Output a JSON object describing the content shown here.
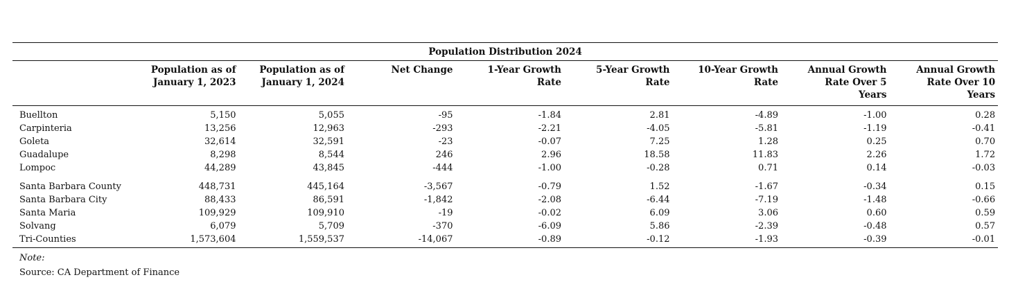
{
  "table": {
    "title": "Population Distribution 2024",
    "columns": [
      [
        "Population as of",
        "January 1, 2023"
      ],
      [
        "Population as of",
        "January 1, 2024"
      ],
      [
        "Net Change"
      ],
      [
        "1-Year Growth",
        "Rate"
      ],
      [
        "5-Year Growth",
        "Rate"
      ],
      [
        "10-Year Growth",
        "Rate"
      ],
      [
        "Annual Growth",
        "Rate Over 5",
        "Years"
      ],
      [
        "Annual Growth",
        "Rate Over 10",
        "Years"
      ]
    ],
    "groups": [
      [
        [
          "Buellton",
          "5,150",
          "5,055",
          "-95",
          "-1.84",
          "2.81",
          "-4.89",
          "-1.00",
          "0.28"
        ],
        [
          "Carpinteria",
          "13,256",
          "12,963",
          "-293",
          "-2.21",
          "-4.05",
          "-5.81",
          "-1.19",
          "-0.41"
        ],
        [
          "Goleta",
          "32,614",
          "32,591",
          "-23",
          "-0.07",
          "7.25",
          "1.28",
          "0.25",
          "0.70"
        ],
        [
          "Guadalupe",
          "8,298",
          "8,544",
          "246",
          "2.96",
          "18.58",
          "11.83",
          "2.26",
          "1.72"
        ],
        [
          "Lompoc",
          "44,289",
          "43,845",
          "-444",
          "-1.00",
          "-0.28",
          "0.71",
          "0.14",
          "-0.03"
        ]
      ],
      [
        [
          "Santa Barbara County",
          "448,731",
          "445,164",
          "-3,567",
          "-0.79",
          "1.52",
          "-1.67",
          "-0.34",
          "0.15"
        ],
        [
          "Santa Barbara City",
          "88,433",
          "86,591",
          "-1,842",
          "-2.08",
          "-6.44",
          "-7.19",
          "-1.48",
          "-0.66"
        ],
        [
          "Santa Maria",
          "109,929",
          "109,910",
          "-19",
          "-0.02",
          "6.09",
          "3.06",
          "0.60",
          "0.59"
        ],
        [
          "Solvang",
          "6,079",
          "5,709",
          "-370",
          "-6.09",
          "5.86",
          "-2.39",
          "-0.48",
          "0.57"
        ],
        [
          "Tri-Counties",
          "1,573,604",
          "1,559,537",
          "-14,067",
          "-0.89",
          "-0.12",
          "-1.93",
          "-0.39",
          "-0.01"
        ]
      ]
    ]
  },
  "notes": {
    "label": "Note:",
    "source": "Source: CA Department of Finance"
  }
}
